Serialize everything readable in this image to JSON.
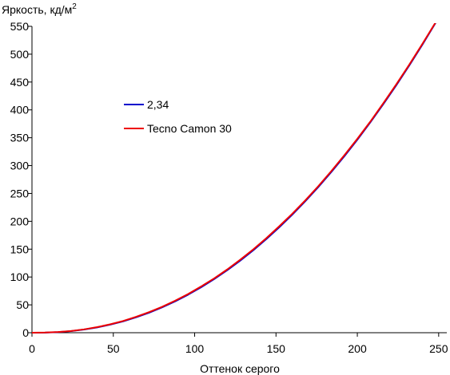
{
  "chart_data": {
    "type": "line",
    "title": "",
    "ylabel": "Яркость, кд/м",
    "ylabel_superscript": "2",
    "xlabel": "Оттенок серого",
    "xlim": [
      0,
      255
    ],
    "ylim": [
      0,
      550
    ],
    "xticks": [
      0,
      50,
      100,
      150,
      200,
      250
    ],
    "yticks": [
      0,
      50,
      100,
      150,
      200,
      250,
      300,
      350,
      400,
      450,
      500,
      550
    ],
    "grid": false,
    "legend_position": "center-left",
    "series": [
      {
        "name": "2,34",
        "color": "#0000cc",
        "x": [
          0,
          8,
          16,
          24,
          32,
          40,
          48,
          56,
          64,
          72,
          80,
          88,
          96,
          104,
          112,
          120,
          128,
          136,
          144,
          152,
          160,
          168,
          176,
          184,
          192,
          200,
          208,
          216,
          224,
          232,
          240,
          248,
          255
        ],
        "y": [
          0,
          0.2,
          1.1,
          2.9,
          5.7,
          9.5,
          14.4,
          20.4,
          27.6,
          35.9,
          45.5,
          56.3,
          68.3,
          81.6,
          96.2,
          112.1,
          129.4,
          147.9,
          167.9,
          189.2,
          211.9,
          236.0,
          261.5,
          288.4,
          316.7,
          346.5,
          377.7,
          410.4,
          444.5,
          480.1,
          517.1,
          555.7,
          590
        ]
      },
      {
        "name": "Tecno Camon 30",
        "color": "#ee0000",
        "x": [
          0,
          8,
          16,
          24,
          32,
          40,
          48,
          56,
          64,
          72,
          80,
          88,
          96,
          104,
          112,
          120,
          128,
          136,
          144,
          152,
          160,
          168,
          176,
          184,
          192,
          200,
          208,
          216,
          224,
          232,
          240,
          248,
          255
        ],
        "y": [
          0,
          0.3,
          1.2,
          3.0,
          6.0,
          10.0,
          15.0,
          21.0,
          28.5,
          37.0,
          46.5,
          57.5,
          69.5,
          83.0,
          97.5,
          113.5,
          131.0,
          149.5,
          169.5,
          191.0,
          213.5,
          237.5,
          263.0,
          290.0,
          318.5,
          348.0,
          379.0,
          412.0,
          446.0,
          481.5,
          518.5,
          556.5,
          590
        ]
      }
    ]
  }
}
